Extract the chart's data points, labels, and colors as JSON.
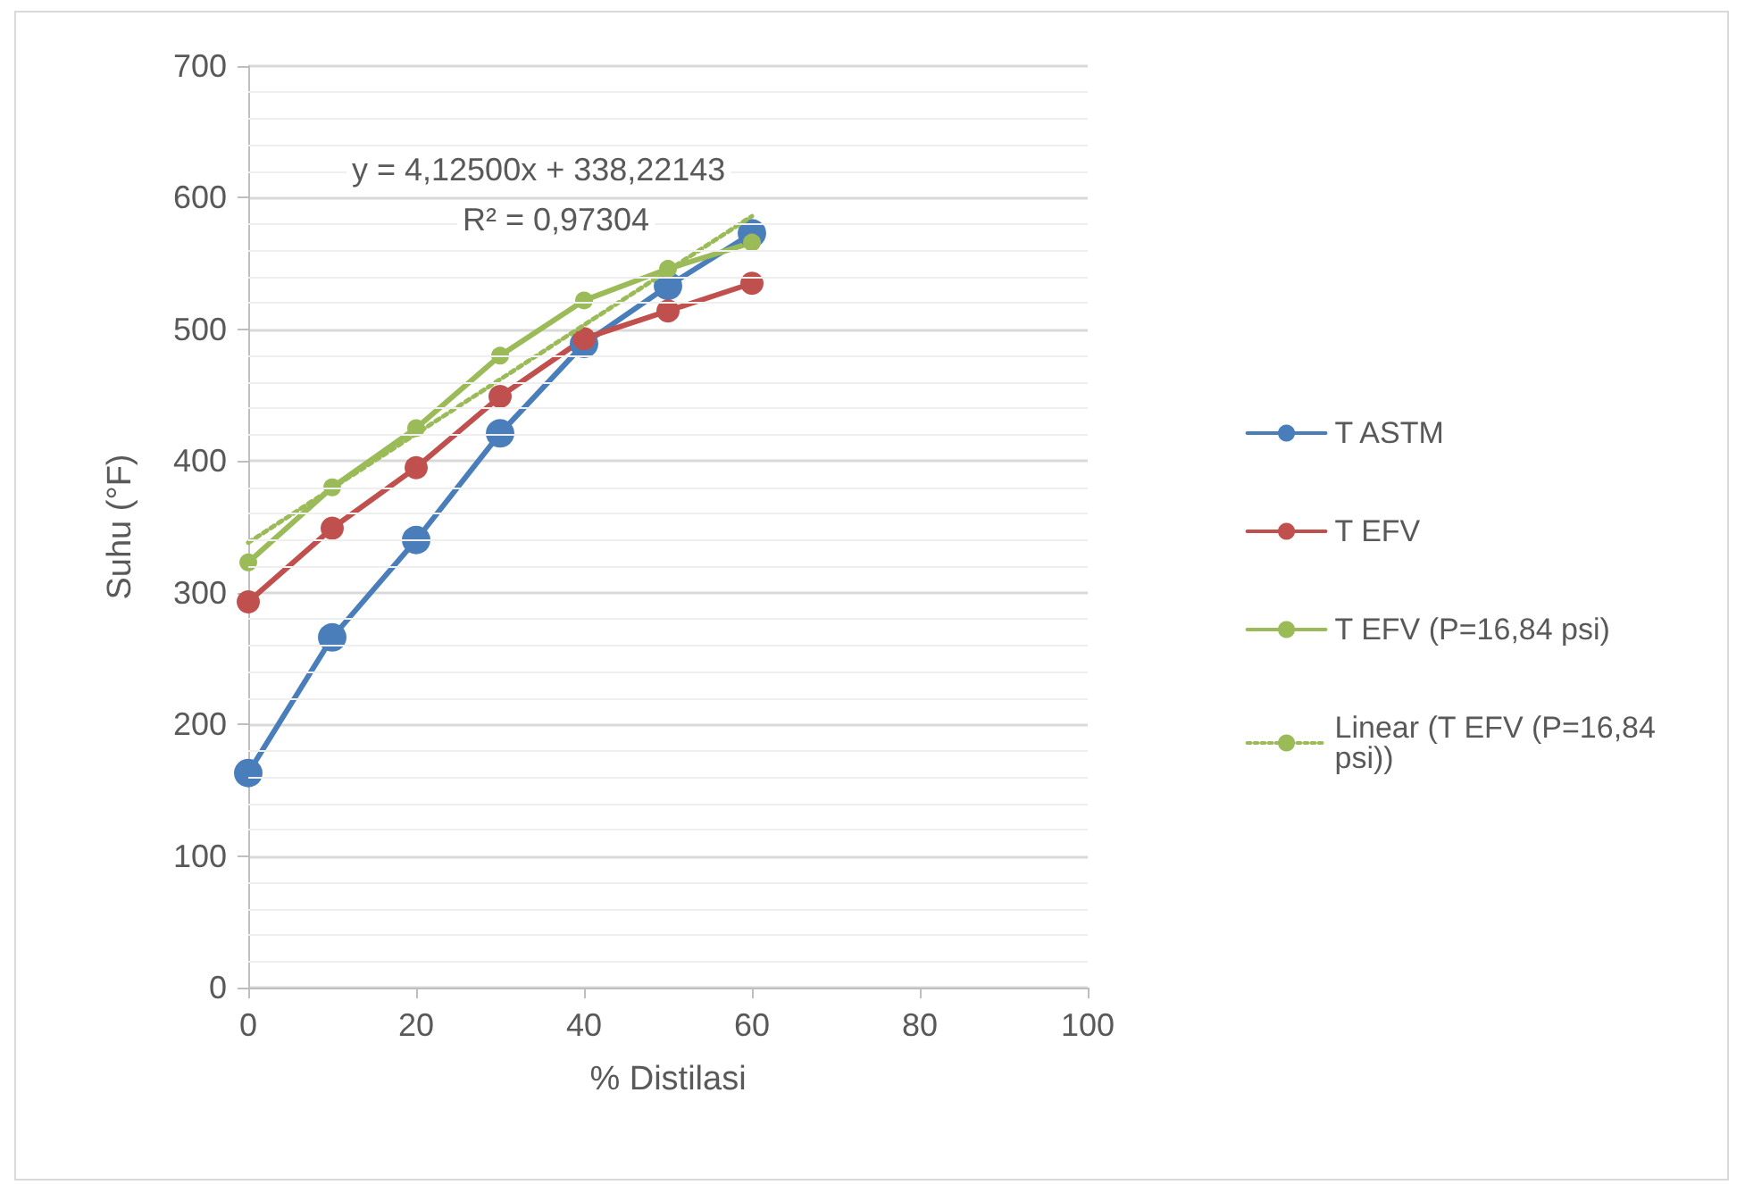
{
  "chart_data": {
    "type": "line",
    "xlabel": "% Distilasi",
    "ylabel": "Suhu (°F)",
    "xlim": [
      0,
      100
    ],
    "xticks": [
      0,
      20,
      40,
      60,
      80,
      100
    ],
    "ylim": [
      0,
      700
    ],
    "yticks": [
      0,
      100,
      200,
      300,
      400,
      500,
      600,
      700
    ],
    "grid": "y",
    "legend": "right",
    "marker": "circle",
    "line_style": "solid",
    "x": [
      0,
      10,
      20,
      30,
      40,
      50,
      60
    ],
    "series": [
      {
        "name": "T ASTM",
        "color": "#4a7ebb",
        "values": [
          163,
          266,
          340,
          421,
          489,
          533,
          573
        ]
      },
      {
        "name": "T EFV",
        "color": "#c0504d",
        "values": [
          293,
          349,
          395,
          449,
          493,
          514,
          535
        ]
      },
      {
        "name": "T EFV (P=16,84 psi)",
        "color": "#9bbb59",
        "values": [
          323,
          380,
          425,
          480,
          522,
          546,
          566
        ]
      },
      {
        "name": "Linear (T EFV (P=16,84 psi))",
        "color": "#9bbb59",
        "x": [
          0,
          60
        ],
        "values": [
          338,
          586
        ],
        "marker": "none",
        "line_style": "dotted"
      }
    ],
    "annotations": [
      "y = 4,12500x + 338,22143",
      "R² = 0,97304"
    ]
  }
}
